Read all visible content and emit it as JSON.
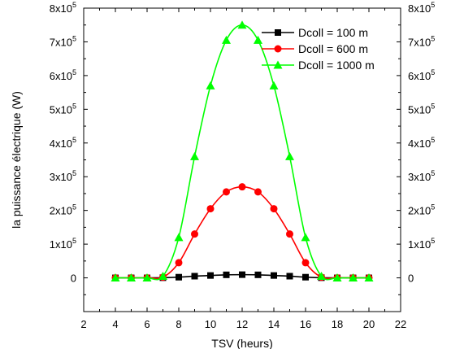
{
  "chart_data": {
    "type": "line",
    "xlabel": "TSV (heurs)",
    "ylabel": "la puissance électrique (W)",
    "xlim": [
      2,
      22
    ],
    "ylim": [
      -100000,
      800000
    ],
    "x_ticks": [
      2,
      4,
      6,
      8,
      10,
      12,
      14,
      16,
      18,
      20,
      22
    ],
    "y_ticks": [
      {
        "value": 0,
        "mantissa": "0",
        "exp": ""
      },
      {
        "value": 100000,
        "mantissa": "1x10",
        "exp": "5"
      },
      {
        "value": 200000,
        "mantissa": "2x10",
        "exp": "5"
      },
      {
        "value": 300000,
        "mantissa": "3x10",
        "exp": "5"
      },
      {
        "value": 400000,
        "mantissa": "4x10",
        "exp": "5"
      },
      {
        "value": 500000,
        "mantissa": "5x10",
        "exp": "5"
      },
      {
        "value": 600000,
        "mantissa": "6x10",
        "exp": "5"
      },
      {
        "value": 700000,
        "mantissa": "7x10",
        "exp": "5"
      },
      {
        "value": 800000,
        "mantissa": "8x10",
        "exp": "5"
      }
    ],
    "legend_position": "top-right",
    "grid": false,
    "x": [
      4,
      5,
      6,
      7,
      8,
      9,
      10,
      11,
      12,
      13,
      14,
      15,
      16,
      17,
      18,
      19,
      20
    ],
    "series": [
      {
        "name": "Dcoll = 100 m",
        "color": "#000000",
        "marker": "square",
        "values": [
          0,
          0,
          0,
          500,
          2000,
          5000,
          7000,
          9000,
          9500,
          9000,
          7000,
          5000,
          2000,
          500,
          0,
          0,
          0
        ]
      },
      {
        "name": "Dcoll = 600 m",
        "color": "#ff0000",
        "marker": "circle",
        "values": [
          0,
          0,
          0,
          2000,
          45000,
          130000,
          205000,
          255000,
          270000,
          255000,
          205000,
          130000,
          45000,
          2000,
          0,
          0,
          0
        ]
      },
      {
        "name": "Dcoll = 1000 m",
        "color": "#00ff00",
        "marker": "triangle",
        "values": [
          0,
          0,
          0,
          5000,
          120000,
          360000,
          570000,
          705000,
          750000,
          705000,
          570000,
          360000,
          120000,
          5000,
          0,
          0,
          0
        ]
      }
    ]
  }
}
